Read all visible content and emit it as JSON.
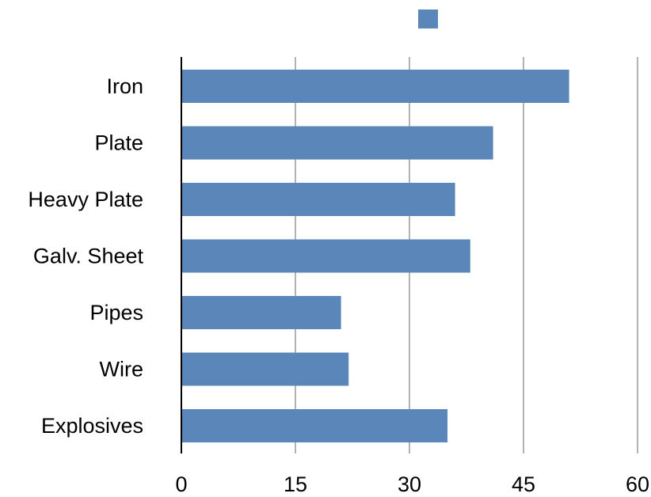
{
  "chart_data": {
    "type": "bar",
    "orientation": "horizontal",
    "categories": [
      "Iron",
      "Plate",
      "Heavy Plate",
      "Galv. Sheet",
      "Pipes",
      "Wire",
      "Explosives"
    ],
    "series": [
      {
        "values": [
          51,
          41,
          36,
          38,
          21,
          22,
          35
        ],
        "color": "#5b86b9"
      }
    ],
    "xlim": [
      0,
      60
    ],
    "xticks": [
      "0",
      "15",
      "30",
      "45",
      "60"
    ],
    "grid": true,
    "legend": "top-center"
  }
}
